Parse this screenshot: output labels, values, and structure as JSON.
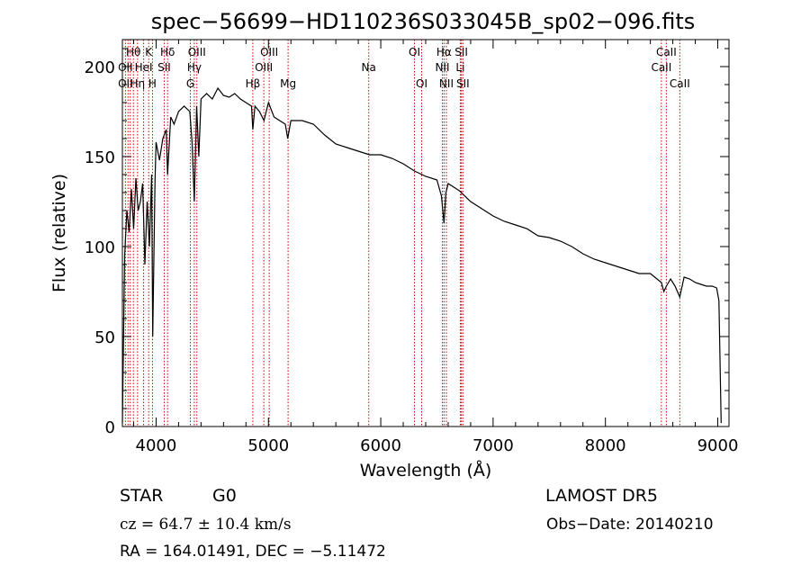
{
  "chart_data": {
    "type": "line",
    "title": "spec−56699−HD110236S033045B_sp02−096.fits",
    "xlabel": "Wavelength (Å)",
    "ylabel": "Flux (relative)",
    "xlim": [
      3700,
      9100
    ],
    "ylim": [
      0,
      215
    ],
    "xticks": [
      4000,
      5000,
      6000,
      7000,
      8000,
      9000
    ],
    "yticks": [
      0,
      50,
      100,
      150,
      200
    ],
    "grid": false,
    "series": [
      {
        "x": [
          3700,
          3720,
          3740,
          3760,
          3780,
          3800,
          3820,
          3840,
          3860,
          3880,
          3900,
          3920,
          3940,
          3960,
          3970,
          3990,
          4000,
          4030,
          4060,
          4090,
          4102,
          4130,
          4160,
          4200,
          4250,
          4300,
          4320,
          4340,
          4361,
          4380,
          4400,
          4450,
          4500,
          4550,
          4600,
          4650,
          4700,
          4750,
          4800,
          4850,
          4861,
          4880,
          4920,
          4960,
          5000,
          5050,
          5100,
          5150,
          5172,
          5200,
          5300,
          5400,
          5500,
          5600,
          5700,
          5800,
          5900,
          6000,
          6100,
          6200,
          6300,
          6400,
          6500,
          6540,
          6563,
          6580,
          6600,
          6700,
          6800,
          6900,
          7000,
          7100,
          7200,
          7300,
          7400,
          7500,
          7600,
          7700,
          7800,
          7900,
          8000,
          8100,
          8200,
          8300,
          8400,
          8498,
          8520,
          8542,
          8580,
          8620,
          8662,
          8700,
          8750,
          8800,
          8850,
          8900,
          8950,
          8990,
          9010,
          9030
        ],
        "y": [
          2,
          95,
          120,
          108,
          132,
          110,
          138,
          120,
          125,
          135,
          90,
          125,
          100,
          140,
          50,
          135,
          158,
          148,
          160,
          165,
          140,
          172,
          168,
          175,
          178,
          175,
          158,
          125,
          178,
          150,
          182,
          185,
          182,
          188,
          184,
          183,
          185,
          182,
          180,
          178,
          165,
          178,
          175,
          170,
          180,
          172,
          170,
          168,
          160,
          170,
          170,
          168,
          162,
          157,
          155,
          153,
          151,
          151,
          149,
          146,
          142,
          139,
          137,
          128,
          113,
          130,
          135,
          131,
          125,
          121,
          117,
          114,
          112,
          110,
          106,
          105,
          103,
          100,
          96,
          93,
          91,
          89,
          87,
          85,
          85,
          80,
          75,
          78,
          82,
          78,
          72,
          83,
          82,
          80,
          79,
          78,
          78,
          77,
          70,
          2
        ]
      }
    ],
    "line_labels": [
      {
        "text": "Hθ",
        "x": 3798,
        "row": 1
      },
      {
        "text": "K",
        "x": 3934,
        "row": 1
      },
      {
        "text": "Hδ",
        "x": 4102,
        "row": 1
      },
      {
        "text": "OIII",
        "x": 4363,
        "row": 1
      },
      {
        "text": "OIII",
        "x": 5007,
        "row": 1
      },
      {
        "text": "OI",
        "x": 6300,
        "row": 1
      },
      {
        "text": "Hα",
        "x": 6563,
        "row": 1
      },
      {
        "text": "SII",
        "x": 6717,
        "row": 1
      },
      {
        "text": "CaII",
        "x": 8542,
        "row": 1
      },
      {
        "text": "OII",
        "x": 3727,
        "row": 2
      },
      {
        "text": "HeI",
        "x": 3889,
        "row": 2
      },
      {
        "text": "SII",
        "x": 4072,
        "row": 2
      },
      {
        "text": "Hγ",
        "x": 4340,
        "row": 2
      },
      {
        "text": "OIII",
        "x": 4959,
        "row": 2
      },
      {
        "text": "Na",
        "x": 5893,
        "row": 2
      },
      {
        "text": "NII",
        "x": 6548,
        "row": 2
      },
      {
        "text": "Li",
        "x": 6708,
        "row": 2
      },
      {
        "text": "CaII",
        "x": 8498,
        "row": 2
      },
      {
        "text": "OII",
        "x": 3727,
        "row": 3
      },
      {
        "text": "Hη",
        "x": 3835,
        "row": 3
      },
      {
        "text": "H",
        "x": 3968,
        "row": 3
      },
      {
        "text": "G",
        "x": 4305,
        "row": 3
      },
      {
        "text": "Hβ",
        "x": 4861,
        "row": 3
      },
      {
        "text": "Mg",
        "x": 5175,
        "row": 3
      },
      {
        "text": "OI",
        "x": 6364,
        "row": 3
      },
      {
        "text": "NII",
        "x": 6584,
        "row": 3
      },
      {
        "text": "SII",
        "x": 6731,
        "row": 3
      },
      {
        "text": "CaII",
        "x": 8662,
        "row": 3
      }
    ],
    "line_markers": [
      3727,
      3750,
      3770,
      3798,
      3835,
      3889,
      3934,
      3968,
      4072,
      4102,
      4305,
      4340,
      4363,
      4861,
      4959,
      5007,
      5175,
      5893,
      6300,
      6364,
      6548,
      6563,
      6584,
      6708,
      6717,
      6731,
      8498,
      8542,
      8662
    ],
    "colors": {
      "spectrum": "#000000",
      "markers": "#cc0000"
    }
  },
  "info": {
    "object_type": "STAR",
    "subclass": "G0",
    "cz": "cz = 64.7 ± 10.4 km/s",
    "radec": "RA = 164.01491, DEC =  −5.11472",
    "survey": "LAMOST DR5",
    "obs_date": "Obs−Date: 20140210"
  }
}
